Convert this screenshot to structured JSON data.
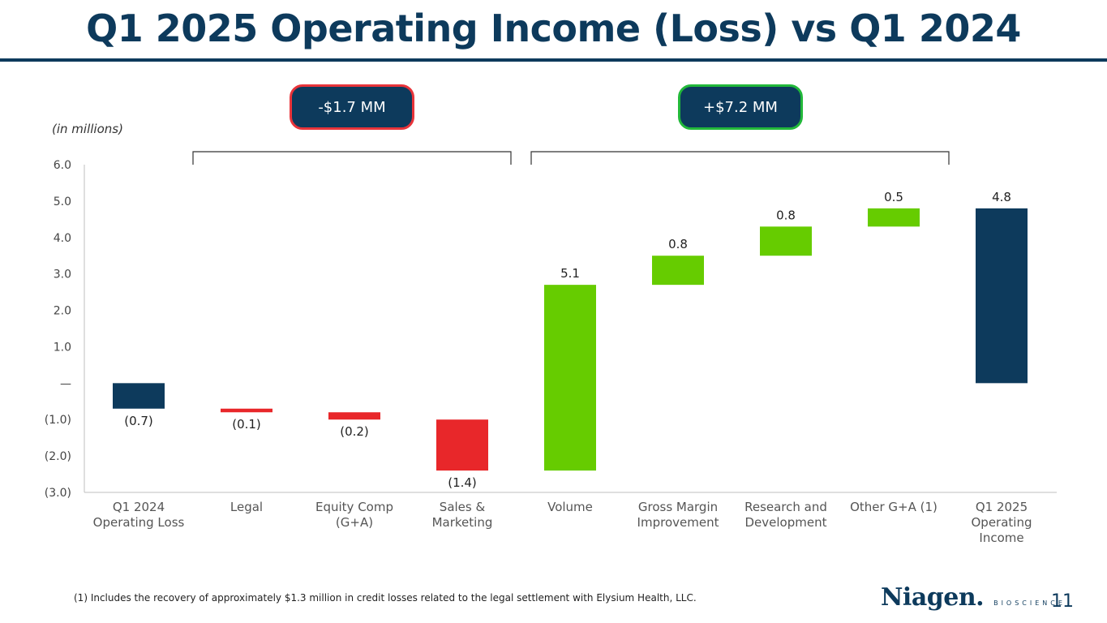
{
  "title": "Q1 2025 Operating Income (Loss) vs Q1 2024",
  "units_label": "(in millions)",
  "callouts": {
    "negative": "-$1.7 MM",
    "positive": "+$7.2 MM"
  },
  "footnote": "(1) Includes the recovery of approximately $1.3 million in credit losses related to the legal settlement with Elysium Health, LLC.",
  "logo": {
    "word": "Niagen.",
    "sub": "BIOSCIENCE"
  },
  "page_number": "11",
  "colors": {
    "navy": "#0d3a5c",
    "red": "#e8272a",
    "green": "#66cc00"
  },
  "chart_data": {
    "type": "waterfall",
    "title": "",
    "ylabel": "(in millions)",
    "ylim": [
      -3.0,
      6.0
    ],
    "yticks": [
      {
        "value": 6.0,
        "label": "6.0"
      },
      {
        "value": 5.0,
        "label": "5.0"
      },
      {
        "value": 4.0,
        "label": "4.0"
      },
      {
        "value": 3.0,
        "label": "3.0"
      },
      {
        "value": 2.0,
        "label": "2.0"
      },
      {
        "value": 1.0,
        "label": "1.0"
      },
      {
        "value": 0.0,
        "label": "—"
      },
      {
        "value": -1.0,
        "label": "(1.0)"
      },
      {
        "value": -2.0,
        "label": "(2.0)"
      },
      {
        "value": -3.0,
        "label": "(3.0)"
      }
    ],
    "bars": [
      {
        "category": [
          "Q1 2024",
          "Operating Loss"
        ],
        "start": 0.0,
        "end": -0.7,
        "kind": "total",
        "label": "(0.7)"
      },
      {
        "category": [
          "Legal"
        ],
        "start": -0.7,
        "end": -0.8,
        "kind": "decrease",
        "label": "(0.1)"
      },
      {
        "category": [
          "Equity Comp",
          "(G+A)"
        ],
        "start": -0.8,
        "end": -1.0,
        "kind": "decrease",
        "label": "(0.2)"
      },
      {
        "category": [
          "Sales &",
          "Marketing"
        ],
        "start": -1.0,
        "end": -2.4,
        "kind": "decrease",
        "label": "(1.4)"
      },
      {
        "category": [
          "Volume"
        ],
        "start": -2.4,
        "end": 2.7,
        "kind": "increase",
        "label": "5.1"
      },
      {
        "category": [
          "Gross Margin",
          "Improvement"
        ],
        "start": 2.7,
        "end": 3.5,
        "kind": "increase",
        "label": "0.8"
      },
      {
        "category": [
          "Research and",
          "Development"
        ],
        "start": 3.5,
        "end": 4.3,
        "kind": "increase",
        "label": "0.8"
      },
      {
        "category": [
          "Other G+A (1)"
        ],
        "start": 4.3,
        "end": 4.8,
        "kind": "increase",
        "label": "0.5"
      },
      {
        "category": [
          "Q1 2025",
          "Operating",
          "Income"
        ],
        "start": 0.0,
        "end": 4.8,
        "kind": "total",
        "label": "4.8"
      }
    ],
    "grid": false,
    "legend": "none"
  }
}
